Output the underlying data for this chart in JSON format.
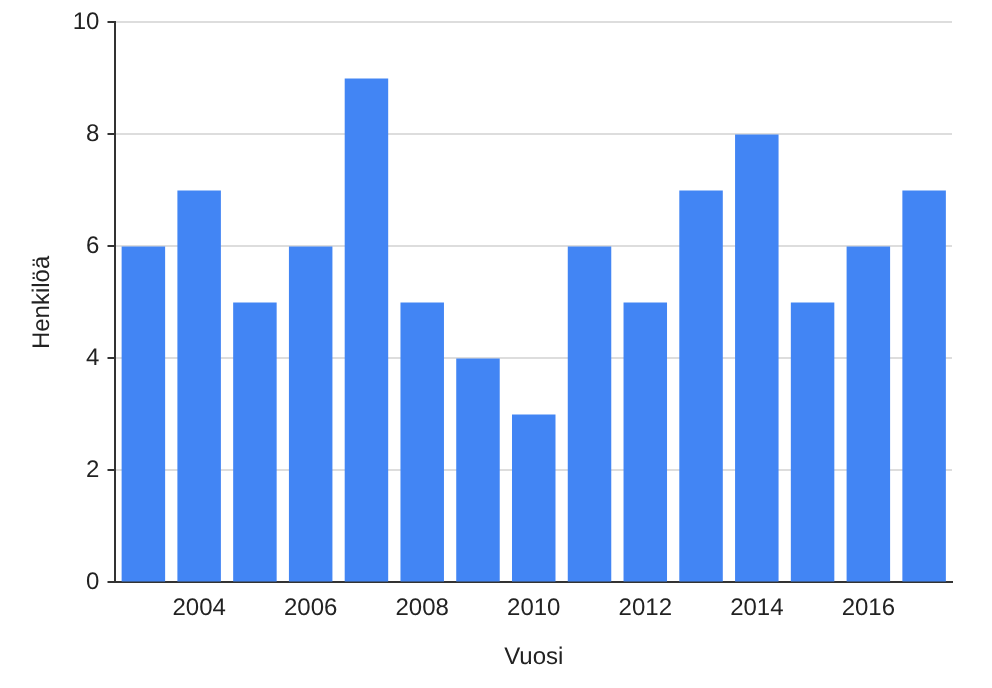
{
  "chart_data": {
    "type": "bar",
    "xlabel": "Vuosi",
    "ylabel": "Henkilöä",
    "categories": [
      null,
      "2004",
      null,
      "2006",
      null,
      "2008",
      null,
      "2010",
      null,
      "2012",
      null,
      "2014",
      null,
      "2016",
      null
    ],
    "values": [
      6,
      7,
      5,
      6,
      9,
      5,
      4,
      3,
      6,
      5,
      7,
      8,
      5,
      6,
      7
    ],
    "color": "#4285f4",
    "ylim": [
      0,
      10
    ],
    "yticks": [
      0,
      2,
      4,
      6,
      8,
      10
    ],
    "grid": "y",
    "legend": false
  }
}
